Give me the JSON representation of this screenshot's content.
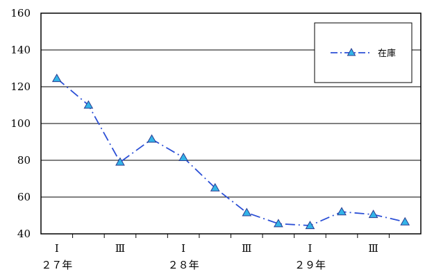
{
  "chart_data": {
    "type": "line",
    "y_ticks": [
      "160",
      "140",
      "120",
      "100",
      "80",
      "60",
      "40"
    ],
    "ylim": [
      40,
      160
    ],
    "grid": true,
    "legend_position": "top-right",
    "quarter_labels": [
      "Ⅰ",
      "Ⅲ",
      "Ⅰ",
      "Ⅲ",
      "Ⅰ",
      "Ⅲ"
    ],
    "year_labels": [
      "２７年",
      "２８年",
      "２９年"
    ],
    "series": [
      {
        "name": "在庫",
        "color": "#2b4fd6",
        "marker_color": "#33b4e8",
        "values": [
          124.5,
          110,
          79,
          91.5,
          81.5,
          65,
          51.5,
          45.5,
          44.5,
          52,
          50.5,
          46.5
        ]
      }
    ]
  }
}
